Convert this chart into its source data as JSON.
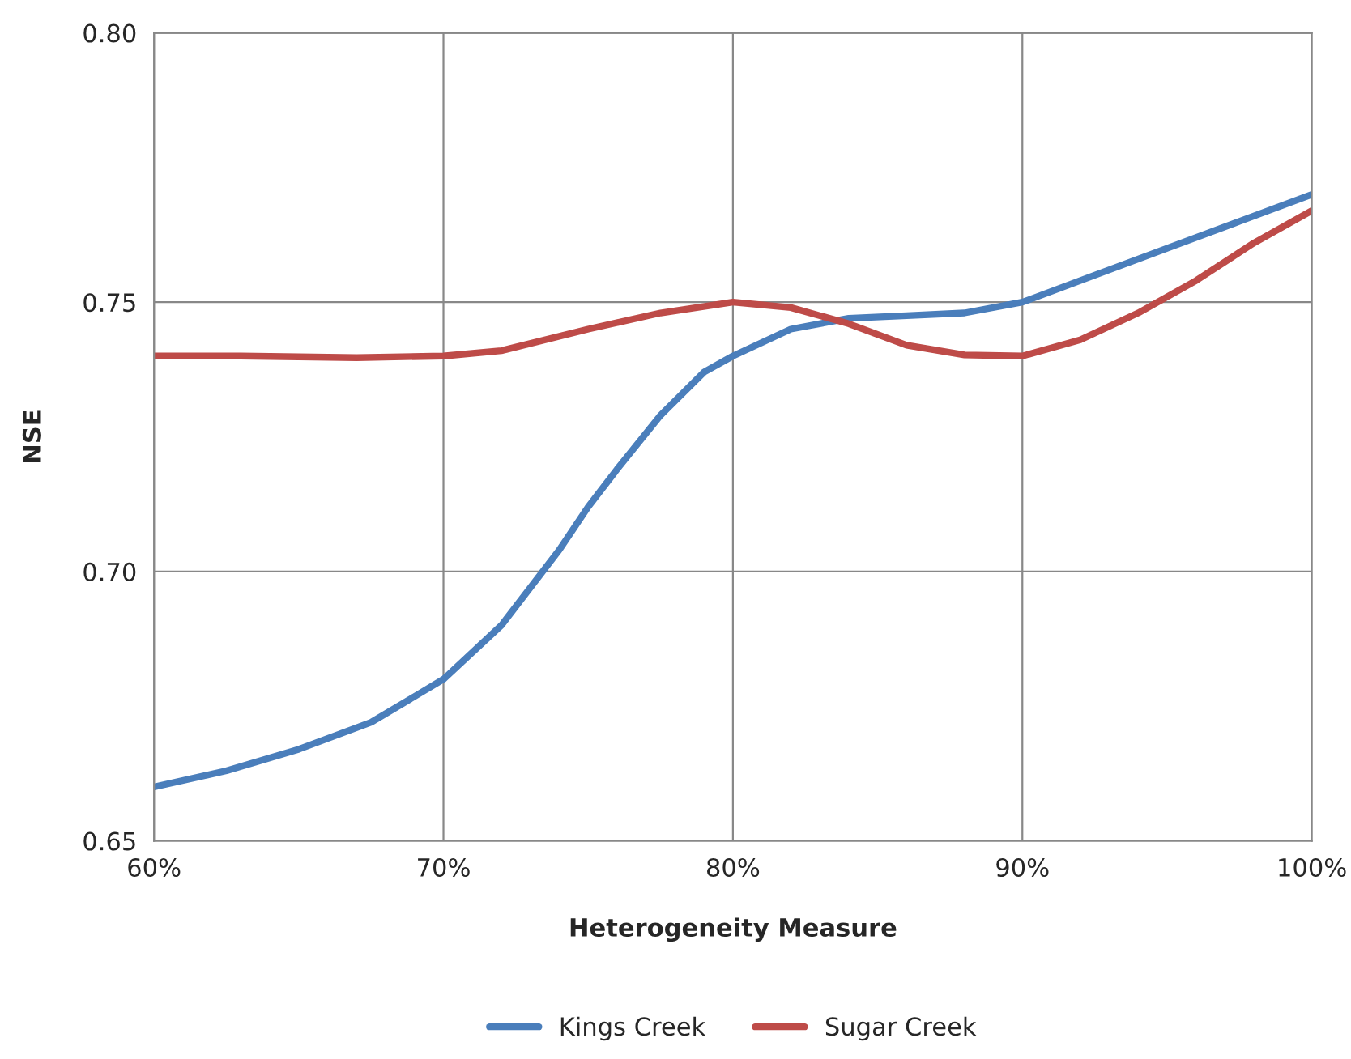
{
  "chart_data": {
    "type": "line",
    "xlabel": "Heterogeneity Measure",
    "ylabel": "NSE",
    "xlim": [
      60,
      100
    ],
    "xticks": [
      {
        "value": 60,
        "label": "60%"
      },
      {
        "value": 70,
        "label": "70%"
      },
      {
        "value": 80,
        "label": "80%"
      },
      {
        "value": 90,
        "label": "90%"
      },
      {
        "value": 100,
        "label": "100%"
      }
    ],
    "ylim": [
      0.65,
      0.8
    ],
    "yticks": [
      {
        "value": 0.65,
        "label": "0.65"
      },
      {
        "value": 0.7,
        "label": "0.70"
      },
      {
        "value": 0.75,
        "label": "0.75"
      },
      {
        "value": 0.8,
        "label": "0.80"
      }
    ],
    "grid": true,
    "legend": "bottom",
    "marker": "none",
    "line_style": "solid",
    "series": [
      {
        "name": "Kings Creek",
        "color": "#4a7ebb",
        "x": [
          60,
          62.5,
          65,
          67.5,
          70,
          72,
          74,
          75,
          76,
          77.5,
          79,
          80,
          82,
          84,
          86,
          88,
          90,
          92.5,
          95,
          97.5,
          100
        ],
        "values": [
          0.66,
          0.663,
          0.667,
          0.672,
          0.68,
          0.69,
          0.704,
          0.712,
          0.719,
          0.729,
          0.737,
          0.74,
          0.745,
          0.747,
          0.7475,
          0.748,
          0.75,
          0.755,
          0.76,
          0.765,
          0.77
        ]
      },
      {
        "name": "Sugar Creek",
        "color": "#be4b48",
        "x": [
          60,
          63,
          67,
          70,
          72,
          75,
          77.5,
          80,
          82,
          84,
          86,
          88,
          90,
          92,
          94,
          96,
          98,
          100
        ],
        "values": [
          0.74,
          0.74,
          0.7397,
          0.74,
          0.741,
          0.745,
          0.748,
          0.75,
          0.749,
          0.746,
          0.742,
          0.7402,
          0.74,
          0.743,
          0.748,
          0.754,
          0.761,
          0.767
        ]
      }
    ]
  }
}
